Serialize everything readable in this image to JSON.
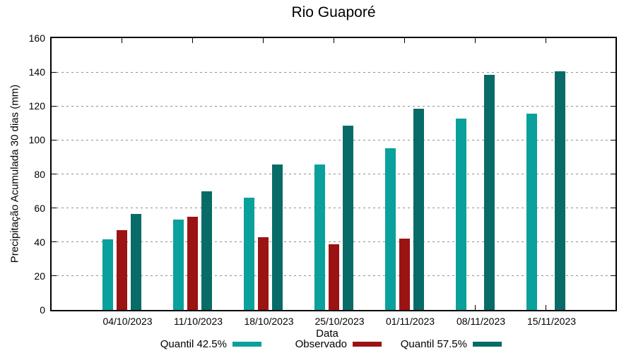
{
  "chart_data": {
    "type": "bar",
    "title": "Rio Guaporé",
    "xlabel": "Data",
    "ylabel": "Precipitação Acumulada 30 dias (mm)",
    "ylim": [
      0,
      160
    ],
    "ytick_step": 20,
    "grid": "horizontal-dotted",
    "grid_color": "#8f8f8f",
    "axis_color": "#000000",
    "legend_position": "bottom",
    "categories": [
      "04/10/2023",
      "11/10/2023",
      "18/10/2023",
      "25/10/2023",
      "01/11/2023",
      "08/11/2023",
      "15/11/2023"
    ],
    "series": [
      {
        "name": "Quantil 42.5%",
        "color": "#0AA09C",
        "values": [
          41.5,
          53,
          66,
          85.5,
          95,
          112.5,
          115.5
        ]
      },
      {
        "name": "Observado",
        "color": "#9B1313",
        "values": [
          47,
          55,
          43,
          38.5,
          42,
          null,
          null
        ]
      },
      {
        "name": "Quantil 57.5%",
        "color": "#086B68",
        "values": [
          56.5,
          70,
          85.5,
          108.5,
          118.5,
          138.5,
          140.5
        ]
      }
    ]
  }
}
